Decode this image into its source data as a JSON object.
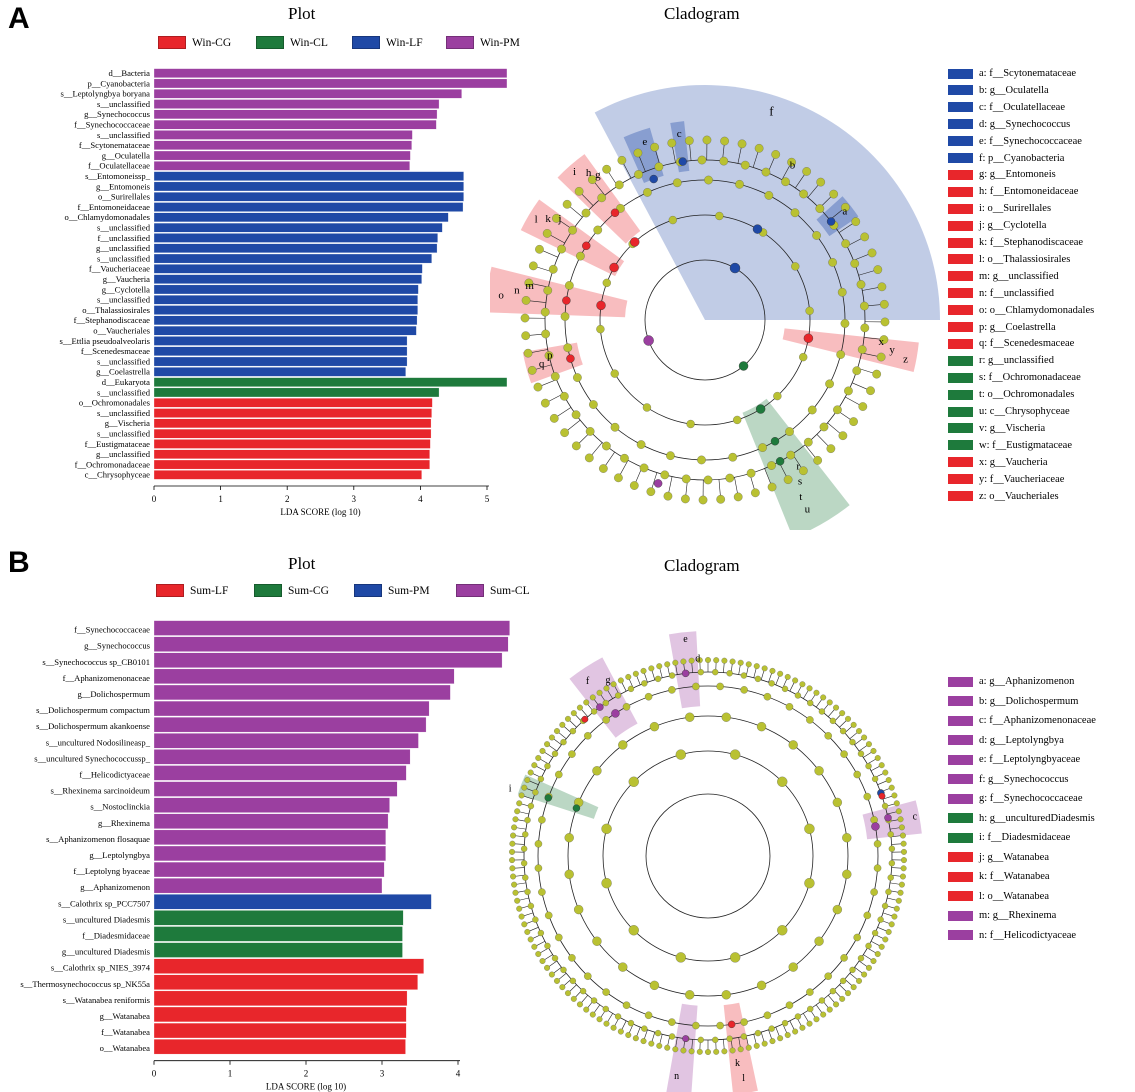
{
  "panels": [
    {
      "letter": "A",
      "plot_title": "Plot",
      "clad_title": "Cladogram",
      "groups": [
        {
          "name": "Win-CG",
          "color": "#e8262b"
        },
        {
          "name": "Win-CL",
          "color": "#1e7a3c"
        },
        {
          "name": "Win-LF",
          "color": "#1f49a6"
        },
        {
          "name": "Win-PM",
          "color": "#9b3fa0"
        }
      ],
      "clad_legend": [
        {
          "label": "a: f__Scytonemataceae",
          "color": "#1f49a6"
        },
        {
          "label": "b: g__Oculatella",
          "color": "#1f49a6"
        },
        {
          "label": "c: f__Oculatellaceae",
          "color": "#1f49a6"
        },
        {
          "label": "d: g__Synechococcus",
          "color": "#1f49a6"
        },
        {
          "label": "e: f__Synechococcaceae",
          "color": "#1f49a6"
        },
        {
          "label": "f: p__Cyanobacteria",
          "color": "#1f49a6"
        },
        {
          "label": "g: g__Entomoneis",
          "color": "#e8262b"
        },
        {
          "label": "h: f__Entomoneidaceae",
          "color": "#e8262b"
        },
        {
          "label": "i: o__Surirellales",
          "color": "#e8262b"
        },
        {
          "label": "j: g__Cyclotella",
          "color": "#e8262b"
        },
        {
          "label": "k: f__Stephanodiscaceae",
          "color": "#e8262b"
        },
        {
          "label": "l: o__Thalassiosirales",
          "color": "#e8262b"
        },
        {
          "label": "m: g__unclassified",
          "color": "#e8262b"
        },
        {
          "label": "n: f__unclassified",
          "color": "#e8262b"
        },
        {
          "label": "o: o__Chlamydomonadales",
          "color": "#e8262b"
        },
        {
          "label": "p: g__Coelastrella",
          "color": "#e8262b"
        },
        {
          "label": "q: f__Scenedesmaceae",
          "color": "#e8262b"
        },
        {
          "label": "r: g__unclassified",
          "color": "#1e7a3c"
        },
        {
          "label": "s: f__Ochromonadaceae",
          "color": "#1e7a3c"
        },
        {
          "label": "t: o__Ochromonadales",
          "color": "#1e7a3c"
        },
        {
          "label": "u: c__Chrysophyceae",
          "color": "#1e7a3c"
        },
        {
          "label": "v: g__Vischeria",
          "color": "#1e7a3c"
        },
        {
          "label": "w: f__Eustigmataceae",
          "color": "#1e7a3c"
        },
        {
          "label": "x: g__Vaucheria",
          "color": "#e8262b"
        },
        {
          "label": "y: f__Vaucheriaceae",
          "color": "#e8262b"
        },
        {
          "label": "z: o__Vaucheriales",
          "color": "#e8262b"
        }
      ],
      "clad_letters": [
        "f",
        "e",
        "c",
        "b",
        "a",
        "i",
        "h",
        "g",
        "l",
        "k",
        "j",
        "o",
        "n",
        "m",
        "q",
        "p",
        "z",
        "y",
        "x",
        "u",
        "t",
        "s",
        "r"
      ]
    },
    {
      "letter": "B",
      "plot_title": "Plot",
      "clad_title": "Cladogram",
      "groups": [
        {
          "name": "Sum-LF",
          "color": "#e8262b"
        },
        {
          "name": "Sum-CG",
          "color": "#1e7a3c"
        },
        {
          "name": "Sum-PM",
          "color": "#1f49a6"
        },
        {
          "name": "Sum-CL",
          "color": "#9b3fa0"
        }
      ],
      "clad_legend": [
        {
          "label": "a: g__Aphanizomenon",
          "color": "#9b3fa0"
        },
        {
          "label": "b: g__Dolichospermum",
          "color": "#9b3fa0"
        },
        {
          "label": "c: f__Aphanizomenonaceae",
          "color": "#9b3fa0"
        },
        {
          "label": "d: g__Leptolyngbya",
          "color": "#9b3fa0"
        },
        {
          "label": "e: f__Leptolyngbyaceae",
          "color": "#9b3fa0"
        },
        {
          "label": "f: g__Synechococcus",
          "color": "#9b3fa0"
        },
        {
          "label": "g: f__Synechococcaceae",
          "color": "#9b3fa0"
        },
        {
          "label": "h: g__unculturedDiadesmis",
          "color": "#1e7a3c"
        },
        {
          "label": "i: f__Diadesmidaceae",
          "color": "#1e7a3c"
        },
        {
          "label": "j: g__Watanabea",
          "color": "#e8262b"
        },
        {
          "label": "k: f__Watanabea",
          "color": "#e8262b"
        },
        {
          "label": "l: o__Watanabea",
          "color": "#e8262b"
        },
        {
          "label": "m: g__Rhexinema",
          "color": "#9b3fa0"
        },
        {
          "label": "n: f__Helicodictyaceae",
          "color": "#9b3fa0"
        }
      ],
      "clad_letters": [
        "e",
        "g",
        "f",
        "d",
        "c",
        "i",
        "l",
        "k",
        "n"
      ]
    }
  ],
  "chart_data": [
    {
      "type": "bar",
      "orientation": "horizontal",
      "title": "Plot",
      "xlabel": "LDA SCORE (log 10)",
      "xlim": [
        0,
        5.5
      ],
      "xticks": [
        0,
        1,
        2,
        3,
        4,
        5
      ],
      "categories": [
        "d__Bacteria",
        "p__Cyanobacteria",
        "s__Leptolyngbya boryana",
        "s__unclassified",
        "g__Synechococcus",
        "f__Synechococcaceae",
        "s__unclassified",
        "f__Scytonemataceae",
        "g__Oculatella",
        "f__Oculatellaceae",
        "s__Entomonеissp_",
        "g__Entomoneis",
        "o__Surirellales",
        "f__Entomoneidaceae",
        "o__Chlamydomonadales",
        "s__unclassified",
        "f__unclassified",
        "g__unclassified",
        "s__unclassified",
        "f__Vaucheriaceae",
        "g__Vaucheria",
        "g__Cyclotella",
        "s__unclassified",
        "o__Thalassiosirales",
        "f__Stephanodiscaceae",
        "o__Vaucheriales",
        "s__Ettlia pseudoalveolaris",
        "f__Scenedesmaceae",
        "s__unclassified",
        "g__Coelastrella",
        "d__Eukaryota",
        "s__unclassified",
        "o__Ochromonadales",
        "s__unclassified",
        "g__Vischeria",
        "s__unclassified",
        "f__Eustigmataceae",
        "g__unclassified",
        "f__Ochromonadaceae",
        "c__Chrysophyceae"
      ],
      "values": [
        5.3,
        5.3,
        4.62,
        4.28,
        4.25,
        4.24,
        3.88,
        3.87,
        3.85,
        3.84,
        4.65,
        4.65,
        4.65,
        4.64,
        4.42,
        4.33,
        4.26,
        4.25,
        4.17,
        4.03,
        4.02,
        3.97,
        3.96,
        3.96,
        3.95,
        3.94,
        3.8,
        3.8,
        3.8,
        3.78,
        5.3,
        4.28,
        4.18,
        4.17,
        4.16,
        4.16,
        4.15,
        4.14,
        4.14,
        4.02
      ],
      "groups": [
        "Win-PM",
        "Win-PM",
        "Win-PM",
        "Win-PM",
        "Win-PM",
        "Win-PM",
        "Win-PM",
        "Win-PM",
        "Win-PM",
        "Win-PM",
        "Win-LF",
        "Win-LF",
        "Win-LF",
        "Win-LF",
        "Win-LF",
        "Win-LF",
        "Win-LF",
        "Win-LF",
        "Win-LF",
        "Win-LF",
        "Win-LF",
        "Win-LF",
        "Win-LF",
        "Win-LF",
        "Win-LF",
        "Win-LF",
        "Win-LF",
        "Win-LF",
        "Win-LF",
        "Win-LF",
        "Win-CL",
        "Win-CL",
        "Win-CG",
        "Win-CG",
        "Win-CG",
        "Win-CG",
        "Win-CG",
        "Win-CG",
        "Win-CG",
        "Win-CG"
      ]
    },
    {
      "type": "bar",
      "orientation": "horizontal",
      "title": "Plot",
      "xlabel": "LDA SCORE (log 10)",
      "xlim": [
        0,
        4.7
      ],
      "xticks": [
        0,
        1,
        2,
        3,
        4
      ],
      "categories": [
        "f__Synechococcaceae",
        "g__Synechococcus",
        "s__Synechococcus sp_CB0101",
        "f__Aphanizomenonaceae",
        "g__Dolichospermum",
        "s__Dolichospermum compactum",
        "s__Dolichospermum akankoense",
        "s__uncultured Nodosilineasp_",
        "s__uncultured Synechococcussp_",
        "f__Helicodictyaceae",
        "s__Rhexinema sarcinoideum",
        "s__Nostoclinckia",
        "g__Rhexinema",
        "s__Aphanizomenon flosaquae",
        "g__Leptolyngbya",
        "f__Leptolyng byaceae",
        "g__Aphanizomenon",
        "s__Calothrix sp_PCC7507",
        "s__uncultured Diadesmis",
        "f__Diadesmidaceae",
        "g__uncultured Diadesmis",
        "s__Calothrix sp_NIES_3974",
        "s__Thermosynechococcus sp_NK55a",
        "s__Watanabea reniformis",
        "g__Watanabea",
        "f__Watanabea",
        "o__Watanabea"
      ],
      "values": [
        4.68,
        4.66,
        4.58,
        3.95,
        3.9,
        3.62,
        3.58,
        3.48,
        3.37,
        3.32,
        3.2,
        3.1,
        3.08,
        3.05,
        3.05,
        3.03,
        3.0,
        3.65,
        3.28,
        3.27,
        3.27,
        3.55,
        3.47,
        3.33,
        3.32,
        3.32,
        3.31
      ],
      "groups": [
        "Sum-CL",
        "Sum-CL",
        "Sum-CL",
        "Sum-CL",
        "Sum-CL",
        "Sum-CL",
        "Sum-CL",
        "Sum-CL",
        "Sum-CL",
        "Sum-CL",
        "Sum-CL",
        "Sum-CL",
        "Sum-CL",
        "Sum-CL",
        "Sum-CL",
        "Sum-CL",
        "Sum-CL",
        "Sum-PM",
        "Sum-CG",
        "Sum-CG",
        "Sum-CG",
        "Sum-LF",
        "Sum-LF",
        "Sum-LF",
        "Sum-LF",
        "Sum-LF",
        "Sum-LF"
      ]
    }
  ]
}
